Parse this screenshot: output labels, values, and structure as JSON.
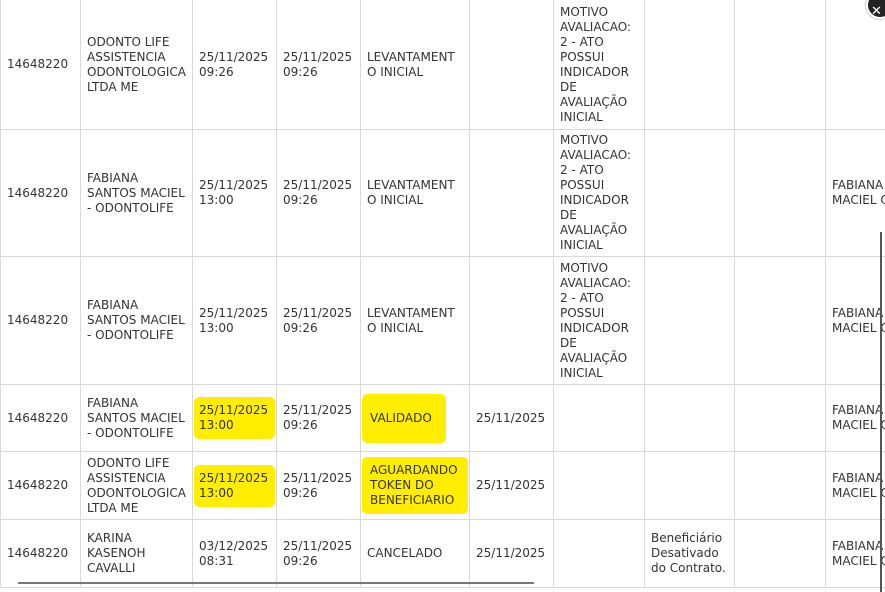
{
  "table": {
    "rows": [
      {
        "id": "14648220",
        "name": "ODONTO LIFE ASSISTENCIA ODONTOLOGICA LTDA ME",
        "date1": "25/11/2025 09:26",
        "date2": "25/11/2025 09:26",
        "status": "LEVANTAMENTO INICIAL",
        "date3": "",
        "motivo": "MOTIVO AVALIACAO: 2 - ATO POSSUI INDICADOR DE AVALIAÇÃO INICIAL",
        "obs": "",
        "extra": "",
        "responsavel": ""
      },
      {
        "id": "14648220",
        "name": "FABIANA SANTOS MACIEL - ODONTOLIFE",
        "date1": "25/11/2025 13:00",
        "date2": "25/11/2025 09:26",
        "status": "LEVANTAMENTO INICIAL",
        "date3": "",
        "motivo": "MOTIVO AVALIACAO: 2 - ATO POSSUI INDICADOR DE AVALIAÇÃO INICIAL",
        "obs": "",
        "extra": "",
        "responsavel": "FABIANA SANTOS MACIEL ODONTO"
      },
      {
        "id": "14648220",
        "name": "FABIANA SANTOS MACIEL - ODONTOLIFE",
        "date1": "25/11/2025 13:00",
        "date2": "25/11/2025 09:26",
        "status": "LEVANTAMENTO INICIAL",
        "date3": "",
        "motivo": "MOTIVO AVALIACAO: 2 - ATO POSSUI INDICADOR DE AVALIAÇÃO INICIAL",
        "obs": "",
        "extra": "",
        "responsavel": "FABIANA SANTOS MACIEL ODONTO"
      },
      {
        "id": "14648220",
        "name": "FABIANA SANTOS MACIEL - ODONTOLIFE",
        "date1": "25/11/2025 13:00",
        "date2": "25/11/2025 09:26",
        "status": "VALIDADO",
        "date3": "25/11/2025",
        "motivo": "",
        "obs": "",
        "extra": "",
        "responsavel": "FABIANA SANTOS MACIEL ODONTO"
      },
      {
        "id": "14648220",
        "name": "ODONTO LIFE ASSISTENCIA ODONTOLOGICA LTDA ME",
        "date1": "25/11/2025 13:00",
        "date2": "25/11/2025 09:26",
        "status": "AGUARDANDO TOKEN DO BENEFICIARIO",
        "date3": "25/11/2025",
        "motivo": "",
        "obs": "",
        "extra": "",
        "responsavel": "FABIANA SANTOS MACIEL ODONTO"
      },
      {
        "id": "14648220",
        "name": "KARINA KASENOH CAVALLI",
        "date1": "03/12/2025 08:31",
        "date2": "25/11/2025 09:26",
        "status": "CANCELADO",
        "date3": "25/11/2025",
        "motivo": "",
        "obs": "Beneficiário Desativado do Contrato.",
        "extra": "",
        "responsavel": "FABIANA SANTOS MACIEL ODONTO"
      }
    ]
  },
  "highlight_color": "#ffee00",
  "close_icon": "close-icon"
}
